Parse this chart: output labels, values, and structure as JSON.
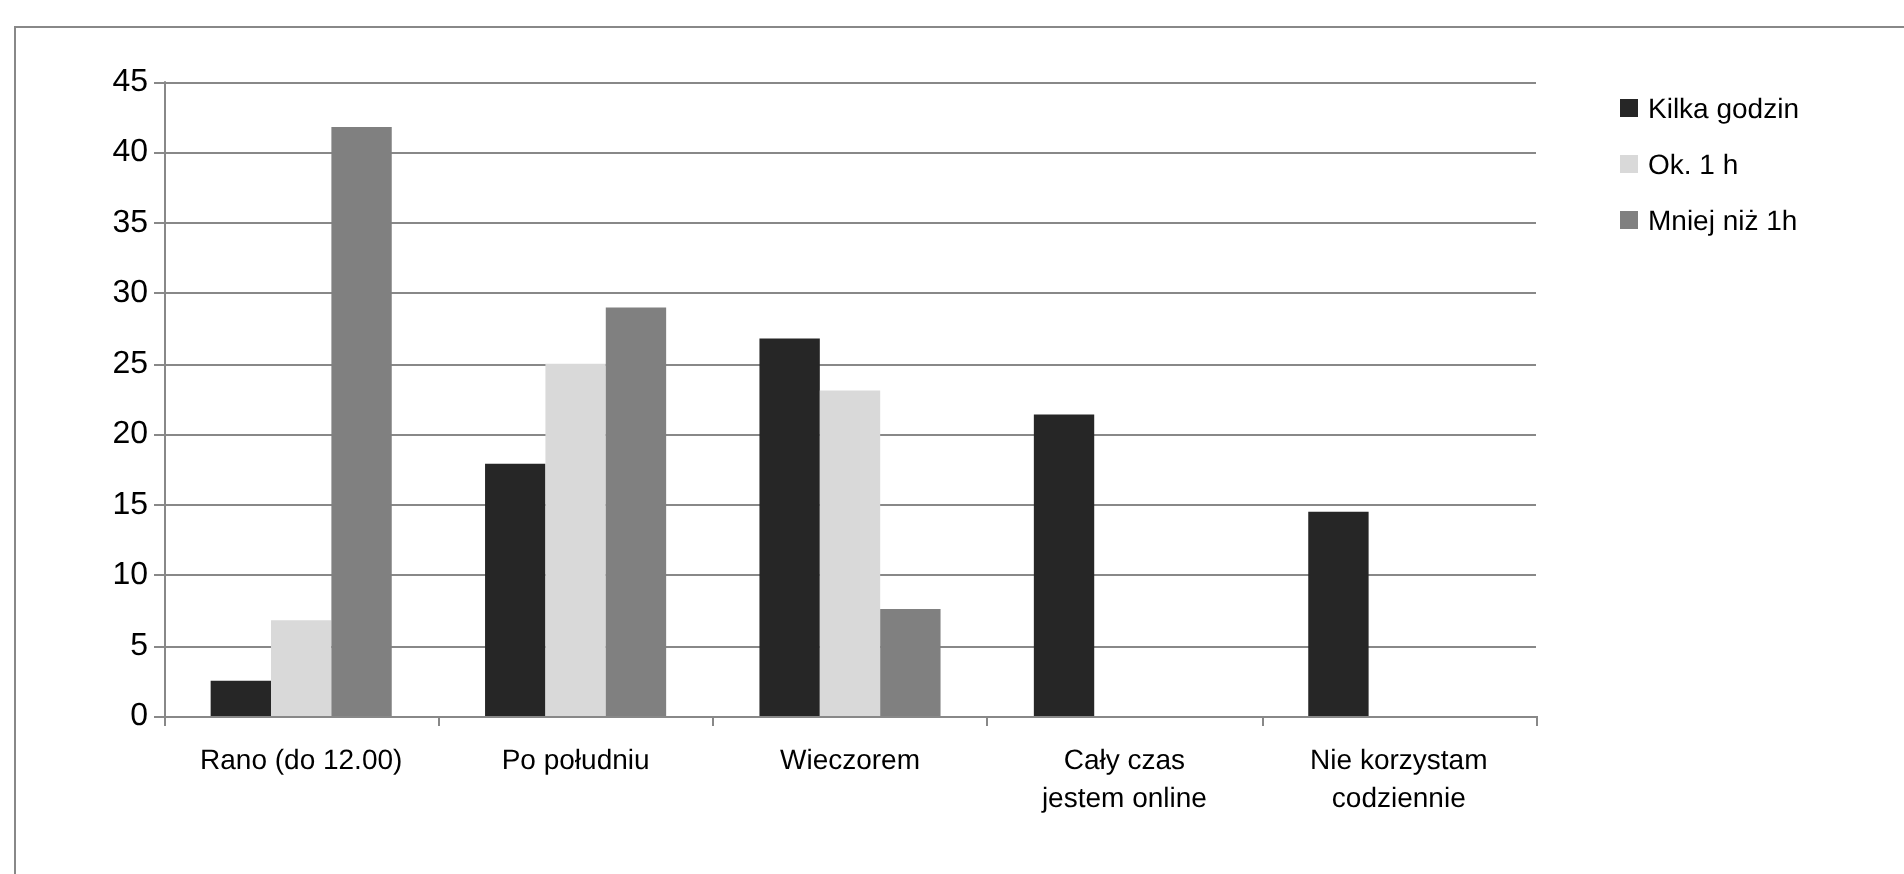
{
  "chart_data": {
    "type": "bar",
    "categories": [
      "Rano (do 12.00)",
      "Po południu",
      "Wieczorem",
      "Cały czas\njestem online",
      "Nie korzystam\ncodziennie"
    ],
    "series": [
      {
        "name": "Kilka godzin",
        "color": "#262626",
        "values": [
          2.5,
          17.9,
          26.8,
          21.4,
          14.5
        ]
      },
      {
        "name": "Ok. 1 h",
        "color": "#d9d9d9",
        "values": [
          6.8,
          25,
          23.1,
          null,
          null
        ]
      },
      {
        "name": "Mniej niż 1h",
        "color": "#808080",
        "values": [
          41.8,
          29,
          7.6,
          null,
          null
        ]
      }
    ],
    "ylim": [
      0,
      45
    ],
    "yticks": [
      0,
      5,
      10,
      15,
      20,
      25,
      30,
      35,
      40,
      45
    ],
    "grid": "y",
    "legend": "right"
  }
}
